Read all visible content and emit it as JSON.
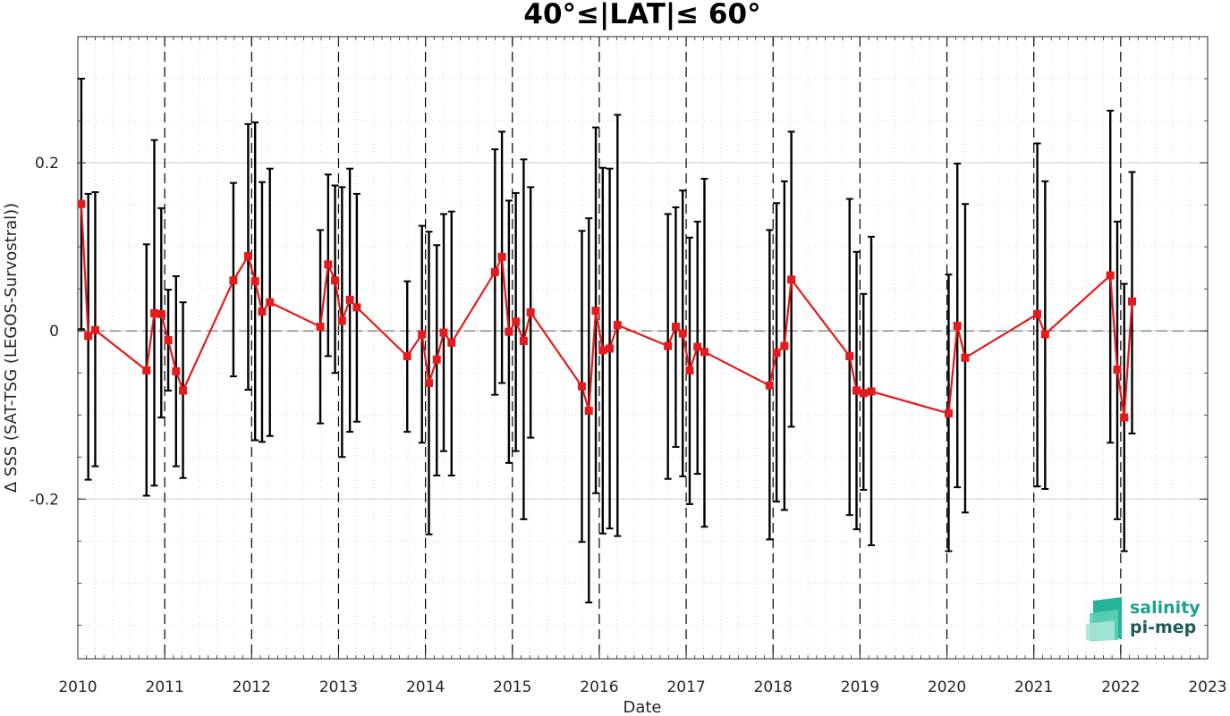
{
  "chart_data": {
    "type": "line",
    "title": "40°≤|LAT|≤ 60°",
    "xlabel": "Date",
    "ylabel": "Δ SSS (SAT-TSG (LEGOS-Survostral))",
    "xlim": [
      2010,
      2023
    ],
    "ylim": [
      -0.39,
      0.35
    ],
    "x_ticks": [
      2010,
      2011,
      2012,
      2013,
      2014,
      2015,
      2016,
      2017,
      2018,
      2019,
      2020,
      2021,
      2022,
      2023
    ],
    "x_tick_labels": [
      "2010",
      "2011",
      "2012",
      "2013",
      "2014",
      "2015",
      "2016",
      "2017",
      "2018",
      "2019",
      "2020",
      "2021",
      "2022",
      "2023"
    ],
    "y_ticks": [
      -0.2,
      0,
      0.2
    ],
    "y_tick_labels": [
      "-0.2",
      "0",
      "0.2"
    ],
    "reference_line": 0,
    "year_dividers": [
      2011,
      2012,
      2013,
      2014,
      2015,
      2016,
      2017,
      2018,
      2019,
      2020,
      2021,
      2022
    ],
    "grid": "minor dotted",
    "series": [
      {
        "color": "#e41a1c",
        "marker": "square",
        "x": [
          2010.04,
          2010.12,
          2010.2,
          2010.79,
          2010.88,
          2010.96,
          2011.04,
          2011.13,
          2011.21,
          2011.79,
          2011.96,
          2012.04,
          2012.12,
          2012.21,
          2012.79,
          2012.88,
          2012.96,
          2013.04,
          2013.13,
          2013.21,
          2013.79,
          2013.96,
          2014.04,
          2014.13,
          2014.21,
          2014.3,
          2014.8,
          2014.88,
          2014.96,
          2015.04,
          2015.13,
          2015.21,
          2015.8,
          2015.88,
          2015.96,
          2016.04,
          2016.12,
          2016.21,
          2016.79,
          2016.88,
          2016.96,
          2017.04,
          2017.13,
          2017.21,
          2017.96,
          2018.04,
          2018.13,
          2018.21,
          2018.88,
          2018.96,
          2019.04,
          2019.13,
          2020.02,
          2020.12,
          2020.21,
          2021.04,
          2021.13,
          2021.88,
          2021.96,
          2022.04,
          2022.13
        ],
        "y": [
          0.151,
          -0.006,
          0.001,
          -0.047,
          0.021,
          0.02,
          -0.011,
          -0.048,
          -0.071,
          0.06,
          0.089,
          0.059,
          0.023,
          0.034,
          0.005,
          0.079,
          0.06,
          0.012,
          0.037,
          0.028,
          -0.03,
          -0.004,
          -0.062,
          -0.034,
          -0.002,
          -0.014,
          0.07,
          0.088,
          -0.001,
          0.011,
          -0.012,
          0.022,
          -0.066,
          -0.095,
          0.024,
          -0.023,
          -0.021,
          0.007,
          -0.018,
          0.005,
          -0.003,
          -0.047,
          -0.019,
          -0.025,
          -0.065,
          -0.026,
          -0.018,
          0.061,
          -0.03,
          -0.071,
          -0.074,
          -0.072,
          -0.098,
          0.006,
          -0.032,
          0.02,
          -0.004,
          0.066,
          -0.046,
          -0.103,
          0.035
        ],
        "err_low": [
          0.002,
          -0.177,
          -0.161,
          -0.196,
          -0.184,
          -0.103,
          -0.071,
          -0.161,
          -0.175,
          -0.054,
          -0.07,
          -0.13,
          -0.132,
          -0.125,
          -0.11,
          -0.03,
          -0.05,
          -0.15,
          -0.12,
          -0.108,
          -0.12,
          -0.133,
          -0.242,
          -0.172,
          -0.143,
          -0.172,
          -0.076,
          -0.062,
          -0.157,
          -0.143,
          -0.224,
          -0.127,
          -0.251,
          -0.323,
          -0.193,
          -0.241,
          -0.235,
          -0.244,
          -0.176,
          -0.138,
          -0.173,
          -0.206,
          -0.17,
          -0.233,
          -0.248,
          -0.203,
          -0.213,
          -0.114,
          -0.219,
          -0.236,
          -0.189,
          -0.255,
          -0.262,
          -0.186,
          -0.216,
          -0.185,
          -0.188,
          -0.133,
          -0.224,
          -0.262,
          -0.122
        ],
        "err_high": [
          0.3,
          0.163,
          0.165,
          0.103,
          0.227,
          0.146,
          0.049,
          0.065,
          0.034,
          0.176,
          0.246,
          0.248,
          0.177,
          0.193,
          0.12,
          0.186,
          0.173,
          0.171,
          0.193,
          0.163,
          0.059,
          0.125,
          0.118,
          0.102,
          0.139,
          0.142,
          0.216,
          0.237,
          0.155,
          0.164,
          0.204,
          0.171,
          0.119,
          0.134,
          0.242,
          0.194,
          0.193,
          0.257,
          0.139,
          0.147,
          0.167,
          0.111,
          0.13,
          0.181,
          0.12,
          0.152,
          0.178,
          0.237,
          0.157,
          0.094,
          0.044,
          0.112,
          0.067,
          0.199,
          0.151,
          0.223,
          0.178,
          0.262,
          0.13,
          0.056,
          0.189
        ]
      }
    ]
  },
  "logo": {
    "line1": "salinity",
    "line2": "pi-mep",
    "color1": "#1aa38c",
    "color2": "#1f5b5b"
  }
}
